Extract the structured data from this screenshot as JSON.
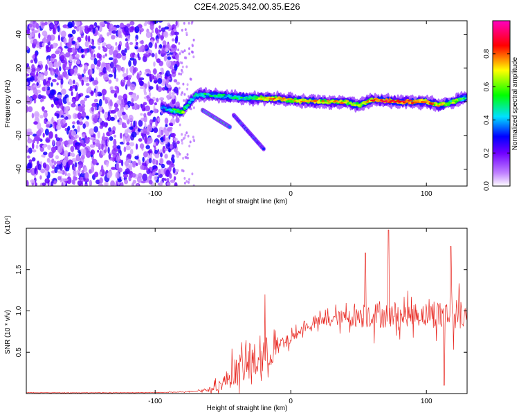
{
  "title": "C2E4.2025.342.00.35.E26",
  "chart_data": [
    {
      "type": "heatmap",
      "title": "C2E4.2025.342.00.35.E26",
      "xlabel": "Height of straight line (km)",
      "ylabel": "Frequency (Hz)",
      "xlim": [
        -195,
        130
      ],
      "ylim": [
        -50,
        48
      ],
      "x_ticks": [
        -100,
        0,
        100
      ],
      "x_tick_labels": [
        "-100",
        "0",
        "100"
      ],
      "y_ticks": [
        -40,
        -20,
        0,
        20,
        40
      ],
      "y_tick_labels": [
        "-40",
        "-20",
        "0",
        "20",
        "40"
      ],
      "colorbar": {
        "label": "Normalized spectral amplitude",
        "range": [
          0,
          1
        ],
        "ticks": [
          0.0,
          0.2,
          0.4,
          0.6,
          0.8
        ],
        "tick_labels": [
          "0.0",
          "0.2",
          "0.4",
          "0.6",
          "0.8"
        ],
        "colors": [
          "#ffffff",
          "#a000ff",
          "#0000ff",
          "#00e0ff",
          "#00ff00",
          "#ffff00",
          "#ff0000",
          "#ff00c0"
        ]
      },
      "features": {
        "noise_region_x": [
          -195,
          -83
        ],
        "noise_level": [
          0.05,
          0.3
        ],
        "signal_ridge": [
          {
            "x": -95,
            "y": -3,
            "v": 0.3
          },
          {
            "x": -88,
            "y": -5,
            "v": 0.5
          },
          {
            "x": -80,
            "y": -6,
            "v": 0.6
          },
          {
            "x": -70,
            "y": 4,
            "v": 0.4
          },
          {
            "x": -60,
            "y": 4,
            "v": 0.5
          },
          {
            "x": -45,
            "y": 3,
            "v": 0.45
          },
          {
            "x": -30,
            "y": 2,
            "v": 0.5
          },
          {
            "x": -15,
            "y": 2,
            "v": 0.8
          },
          {
            "x": 0,
            "y": 1,
            "v": 0.7
          },
          {
            "x": 20,
            "y": 0,
            "v": 0.75
          },
          {
            "x": 40,
            "y": 0,
            "v": 0.7
          },
          {
            "x": 50,
            "y": -2,
            "v": 0.6
          },
          {
            "x": 60,
            "y": 1,
            "v": 0.8
          },
          {
            "x": 80,
            "y": 0,
            "v": 0.85
          },
          {
            "x": 100,
            "y": 0,
            "v": 0.8
          },
          {
            "x": 110,
            "y": -2,
            "v": 0.7
          },
          {
            "x": 120,
            "y": 0,
            "v": 0.6
          },
          {
            "x": 130,
            "y": 3,
            "v": 0.5
          }
        ],
        "branches": [
          {
            "from": [
              -65,
              -5
            ],
            "to": [
              -45,
              -15
            ],
            "v": 0.45
          },
          {
            "from": [
              -42,
              -8
            ],
            "to": [
              -20,
              -28
            ],
            "v": 0.3
          }
        ]
      }
    },
    {
      "type": "line",
      "xlabel": "Height of straight line (km)",
      "ylabel": "SNR (10 * v/v)",
      "y_multiplier": "(x10⁴)",
      "xlim": [
        -195,
        130
      ],
      "ylim": [
        0,
        2.0
      ],
      "x_ticks": [
        -100,
        0,
        100
      ],
      "x_tick_labels": [
        "-100",
        "0",
        "100"
      ],
      "y_ticks": [
        0.5,
        1.0,
        1.5
      ],
      "y_tick_labels": [
        "0.5",
        "1.0",
        "1.5"
      ],
      "line_color": "#e8261f",
      "series": [
        {
          "x": [
            -195,
            -180,
            -160,
            -140,
            -120,
            -100,
            -90,
            -80,
            -70,
            -60,
            -55,
            -50,
            -45,
            -40,
            -35,
            -30,
            -25,
            -20,
            -15,
            -10,
            -5,
            0,
            5,
            10,
            20,
            30,
            40,
            50,
            60,
            70,
            80,
            90,
            100,
            110,
            120,
            130
          ],
          "values": [
            0.01,
            0.01,
            0.01,
            0.01,
            0.01,
            0.012,
            0.015,
            0.02,
            0.03,
            0.05,
            0.08,
            0.13,
            0.2,
            0.27,
            0.32,
            0.36,
            0.4,
            0.45,
            0.5,
            0.55,
            0.6,
            0.66,
            0.73,
            0.8,
            0.86,
            0.9,
            0.92,
            0.93,
            0.95,
            0.95,
            0.94,
            0.95,
            0.96,
            0.95,
            0.95,
            0.96
          ],
          "spread": [
            0.005,
            0.005,
            0.005,
            0.005,
            0.005,
            0.006,
            0.007,
            0.01,
            0.015,
            0.05,
            0.12,
            0.2,
            0.3,
            0.4,
            0.45,
            0.5,
            0.5,
            0.55,
            0.4,
            0.3,
            0.2,
            0.15,
            0.12,
            0.12,
            0.15,
            0.18,
            0.22,
            0.3,
            0.35,
            0.35,
            0.3,
            0.3,
            0.32,
            0.4,
            0.42,
            0.4
          ]
        }
      ],
      "peaks": [
        {
          "x": -19,
          "y": 1.2
        },
        {
          "x": 55,
          "y": 1.7
        },
        {
          "x": 72,
          "y": 1.98
        },
        {
          "x": 118,
          "y": 1.78
        },
        {
          "x": 113,
          "y": 0.1
        }
      ]
    }
  ]
}
